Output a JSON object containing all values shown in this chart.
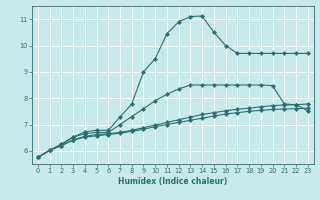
{
  "xlabel": "Humidex (Indice chaleur)",
  "ylabel": "",
  "bg_color": "#c8eaea",
  "grid_color": "#ffffff",
  "line_color": "#2a7070",
  "spine_color": "#2a7070",
  "xlim": [
    -0.5,
    23.5
  ],
  "ylim": [
    5.5,
    11.5
  ],
  "xticks": [
    0,
    1,
    2,
    3,
    4,
    5,
    6,
    7,
    8,
    9,
    10,
    11,
    12,
    13,
    14,
    15,
    16,
    17,
    18,
    19,
    20,
    21,
    22,
    23
  ],
  "yticks": [
    6,
    7,
    8,
    9,
    10,
    11
  ],
  "series": [
    {
      "x": [
        0,
        1,
        2,
        3,
        4,
        5,
        6,
        7,
        8,
        9,
        10,
        11,
        12,
        13,
        14,
        15,
        16,
        17,
        18,
        19,
        20,
        21,
        22,
        23
      ],
      "y": [
        5.75,
        6.02,
        6.25,
        6.52,
        6.72,
        6.78,
        6.78,
        7.28,
        7.78,
        9.0,
        9.5,
        10.45,
        10.9,
        11.1,
        11.12,
        10.5,
        10.0,
        9.7,
        9.7,
        9.7,
        9.7,
        9.7,
        9.7,
        9.7
      ]
    },
    {
      "x": [
        0,
        1,
        2,
        3,
        4,
        5,
        6,
        7,
        8,
        9,
        10,
        11,
        12,
        13,
        14,
        15,
        16,
        17,
        18,
        19,
        20,
        21,
        22,
        23
      ],
      "y": [
        5.75,
        6.02,
        6.25,
        6.52,
        6.65,
        6.7,
        6.7,
        7.0,
        7.3,
        7.6,
        7.9,
        8.15,
        8.35,
        8.5,
        8.5,
        8.5,
        8.5,
        8.5,
        8.5,
        8.5,
        8.48,
        7.78,
        7.75,
        7.52
      ]
    },
    {
      "x": [
        0,
        1,
        2,
        3,
        4,
        5,
        6,
        7,
        8,
        9,
        10,
        11,
        12,
        13,
        14,
        15,
        16,
        17,
        18,
        19,
        20,
        21,
        22,
        23
      ],
      "y": [
        5.75,
        6.02,
        6.2,
        6.42,
        6.55,
        6.62,
        6.65,
        6.7,
        6.78,
        6.88,
        6.98,
        7.08,
        7.18,
        7.28,
        7.38,
        7.45,
        7.52,
        7.58,
        7.62,
        7.67,
        7.72,
        7.74,
        7.75,
        7.78
      ]
    },
    {
      "x": [
        0,
        1,
        2,
        3,
        4,
        5,
        6,
        7,
        8,
        9,
        10,
        11,
        12,
        13,
        14,
        15,
        16,
        17,
        18,
        19,
        20,
        21,
        22,
        23
      ],
      "y": [
        5.75,
        6.02,
        6.2,
        6.4,
        6.52,
        6.57,
        6.62,
        6.67,
        6.74,
        6.82,
        6.92,
        7.0,
        7.08,
        7.16,
        7.24,
        7.32,
        7.4,
        7.45,
        7.5,
        7.54,
        7.57,
        7.59,
        7.6,
        7.62
      ]
    }
  ]
}
